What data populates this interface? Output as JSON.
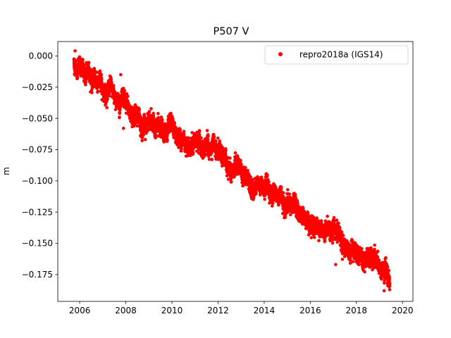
{
  "chart_data": {
    "type": "scatter",
    "title": "P507 V",
    "xlabel": "",
    "ylabel": "m",
    "xlim": [
      2005.05,
      2020.45
    ],
    "ylim": [
      -0.1965,
      0.0115
    ],
    "xticks": [
      2006,
      2008,
      2010,
      2012,
      2014,
      2016,
      2018,
      2020
    ],
    "xtick_labels": [
      "2006",
      "2008",
      "2010",
      "2012",
      "2014",
      "2016",
      "2018",
      "2020"
    ],
    "yticks": [
      0.0,
      -0.025,
      -0.05,
      -0.075,
      -0.1,
      -0.125,
      -0.15,
      -0.175
    ],
    "ytick_labels": [
      "0.000",
      "−0.025",
      "−0.050",
      "−0.075",
      "−0.100",
      "−0.125",
      "−0.150",
      "−0.175"
    ],
    "grid": false,
    "legend_position": "top-right",
    "series": [
      {
        "name": "repro2018a (IGS14)",
        "color": "#ff0000",
        "marker": "circle",
        "x_range": [
          2005.75,
          2019.45
        ],
        "trend": {
          "x": [
            2005.75,
            2006.5,
            2007.5,
            2008.0,
            2009.0,
            2010.0,
            2011.0,
            2012.0,
            2013.0,
            2014.0,
            2015.0,
            2016.0,
            2017.0,
            2018.0,
            2019.0,
            2019.45
          ],
          "y": [
            -0.006,
            -0.017,
            -0.031,
            -0.043,
            -0.054,
            -0.063,
            -0.07,
            -0.08,
            -0.094,
            -0.107,
            -0.118,
            -0.132,
            -0.145,
            -0.156,
            -0.167,
            -0.18
          ]
        },
        "scatter_spread": 0.0055,
        "outliers": [
          {
            "x": 2005.8,
            "y": 0.004
          },
          {
            "x": 2007.78,
            "y": -0.015
          },
          {
            "x": 2007.9,
            "y": -0.058
          },
          {
            "x": 2008.95,
            "y": -0.046
          },
          {
            "x": 2017.1,
            "y": -0.167
          },
          {
            "x": 2019.2,
            "y": -0.188
          }
        ]
      }
    ]
  }
}
